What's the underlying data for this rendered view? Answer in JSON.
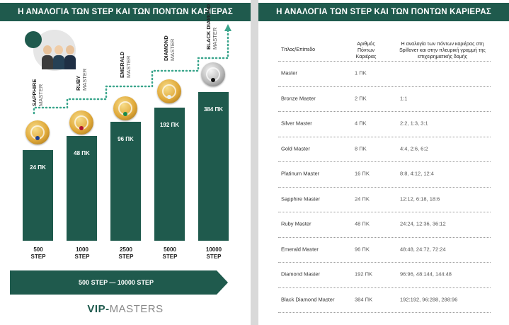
{
  "left_page": {
    "header": "Η ΑΝΑΛΟΓΙΑ ΤΩΝ STEP ΚΑΙ ΤΩΝ ΠΟΝΤΩΝ ΚΑΡΙΕΡΑΣ",
    "ranks": [
      {
        "name": "SAPPHIRE",
        "level": "MASTER",
        "points_label": "24 ΠΚ",
        "step_value": "500",
        "step_unit": "STEP",
        "medal": "gold",
        "gem_color": "#1d3f8f"
      },
      {
        "name": "RUBY",
        "level": "MASTER",
        "points_label": "48 ΠΚ",
        "step_value": "1000",
        "step_unit": "STEP",
        "medal": "gold",
        "gem_color": "#b3122e"
      },
      {
        "name": "EMERALD",
        "level": "MASTER",
        "points_label": "96 ΠΚ",
        "step_value": "2500",
        "step_unit": "STEP",
        "medal": "gold",
        "gem_color": "#1a8a4a"
      },
      {
        "name": "DIAMOND",
        "level": "MASTER",
        "points_label": "192 ΠΚ",
        "step_value": "5000",
        "step_unit": "STEP",
        "medal": "gold",
        "gem_color": "#e9f2f7"
      },
      {
        "name": "BLACK DIAMOND",
        "level": "MASTER",
        "points_label": "384 ΠΚ",
        "step_value": "10000",
        "step_unit": "STEP",
        "medal": "silver",
        "gem_color": "#111111"
      }
    ],
    "range_banner": "500 STEP — 10000 STEP",
    "brand_part1": "VIP-",
    "brand_part2": "MASTERS",
    "colors": {
      "primary": "#1f5a4d",
      "accent": "#3aa58c"
    }
  },
  "right_page": {
    "header": "Η ΑΝΑΛΟΓΙΑ ΤΩΝ STEP ΚΑΙ ΤΩΝ ΠΟΝΤΩΝ ΚΑΡΙΕΡΑΣ",
    "columns": [
      "Τίτλος/Επίπεδο",
      "Αριθμός Πόντων Καριέρας",
      "Η αναλογία των πόντων καριέρας στη Spillover και στην πλευρική γραμμή της επιχειρηματικής δομής"
    ],
    "rows": [
      {
        "title": "Master",
        "points": "1 ΠΚ",
        "ratio": ""
      },
      {
        "title": "Bronze Master",
        "points": "2 ΠΚ",
        "ratio": "1:1"
      },
      {
        "title": "Silver Master",
        "points": "4 ΠΚ",
        "ratio": "2:2, 1:3, 3:1"
      },
      {
        "title": "Gold Master",
        "points": "8 ΠΚ",
        "ratio": "4:4, 2:6, 6:2"
      },
      {
        "title": "Platinum Master",
        "points": "16 ΠΚ",
        "ratio": "8:8, 4:12, 12:4"
      },
      {
        "title": "Sapphire Master",
        "points": "24 ΠΚ",
        "ratio": "12:12, 6:18, 18:6"
      },
      {
        "title": "Ruby Master",
        "points": "48 ΠΚ",
        "ratio": "24:24, 12:36, 36:12"
      },
      {
        "title": "Emerald Master",
        "points": "96 ΠΚ",
        "ratio": "48:48, 24:72, 72:24"
      },
      {
        "title": "Diamond Master",
        "points": "192 ΠΚ",
        "ratio": "96:96, 48:144, 144:48"
      },
      {
        "title": "Black Diamond Master",
        "points": "384 ΠΚ",
        "ratio": "192:192, 96:288, 288:96"
      }
    ]
  }
}
